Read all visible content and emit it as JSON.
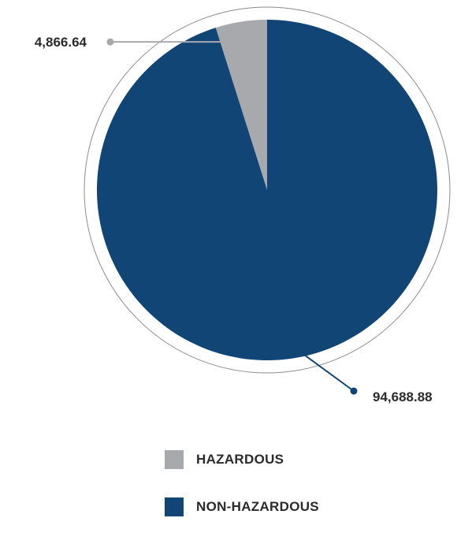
{
  "chart_data": {
    "type": "pie",
    "title": "",
    "slices": [
      {
        "label": "HAZARDOUS",
        "value": 4866.64,
        "display": "4,866.64",
        "color": "#a7a9ac"
      },
      {
        "label": "NON-HAZARDOUS",
        "value": 94688.88,
        "display": "94,688.88",
        "color": "#114575"
      }
    ],
    "legend_position": "bottom"
  },
  "legend": {
    "items": [
      {
        "label": "HAZARDOUS",
        "color": "#a7a9ac"
      },
      {
        "label": "NON-HAZARDOUS",
        "color": "#114575"
      }
    ]
  }
}
